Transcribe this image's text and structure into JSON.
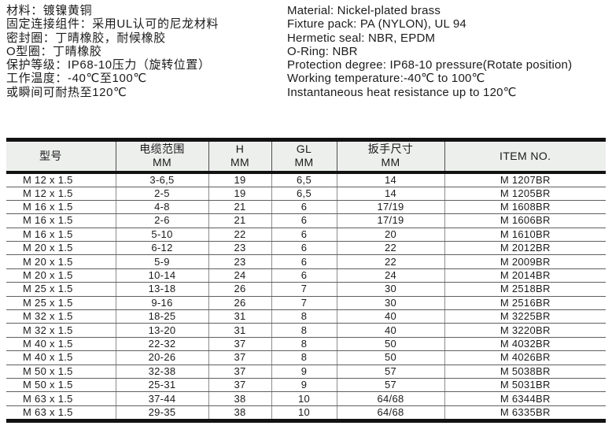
{
  "specs": {
    "zh": [
      "材料：镀镍黄铜",
      "固定连接组件：采用UL认可的尼龙材料",
      "密封圈：丁晴橡胶，耐候橡胶",
      "O型圈：丁晴橡胶",
      "保护等级：IP68-10压力（旋转位置）",
      "工作温度：-40℃至100℃",
      "或瞬间可耐热至120℃"
    ],
    "en": [
      "Material: Nickel-plated brass",
      "Fixture pack: PA (NYLON), UL 94",
      "Hermetic seal: NBR, EPDM",
      "O-Ring: NBR",
      "Protection degree: IP68-10 pressure(Rotate position)",
      "Working temperature:-40℃ to 100℃",
      "Instantaneous heat resistance up to 120℃"
    ]
  },
  "table": {
    "headers": [
      {
        "line1": "型号",
        "line2": ""
      },
      {
        "line1": "电缆范围",
        "line2": "MM"
      },
      {
        "line1": "H",
        "line2": "MM"
      },
      {
        "line1": "GL",
        "line2": "MM"
      },
      {
        "line1": "扳手尺寸",
        "line2": "MM"
      },
      {
        "line1": "ITEM NO.",
        "line2": ""
      }
    ],
    "rows": [
      [
        "M 12 x 1.5",
        "3-6,5",
        "19",
        "6,5",
        "14",
        "M 1207BR"
      ],
      [
        "M 12 x 1.5",
        "2-5",
        "19",
        "6,5",
        "14",
        "M 1205BR"
      ],
      [
        "M 16 x 1.5",
        "4-8",
        "21",
        "6",
        "17/19",
        "M 1608BR"
      ],
      [
        "M 16 x 1.5",
        "2-6",
        "21",
        "6",
        "17/19",
        "M 1606BR"
      ],
      [
        "M 16 x 1.5",
        "5-10",
        "22",
        "6",
        "20",
        "M 1610BR"
      ],
      [
        "M 20 x 1.5",
        "6-12",
        "23",
        "6",
        "22",
        "M 2012BR"
      ],
      [
        "M 20 x 1.5",
        "5-9",
        "23",
        "6",
        "22",
        "M 2009BR"
      ],
      [
        "M 20 x 1.5",
        "10-14",
        "24",
        "6",
        "24",
        "M 2014BR"
      ],
      [
        "M 25 x 1.5",
        "13-18",
        "26",
        "7",
        "30",
        "M 2518BR"
      ],
      [
        "M 25 x 1.5",
        "9-16",
        "26",
        "7",
        "30",
        "M 2516BR"
      ],
      [
        "M 32 x 1.5",
        "18-25",
        "31",
        "8",
        "40",
        "M 3225BR"
      ],
      [
        "M 32 x 1.5",
        "13-20",
        "31",
        "8",
        "40",
        "M 3220BR"
      ],
      [
        "M 40 x 1.5",
        "22-32",
        "37",
        "8",
        "50",
        "M 4032BR"
      ],
      [
        "M 40 x 1.5",
        "20-26",
        "37",
        "8",
        "50",
        "M 4026BR"
      ],
      [
        "M 50 x 1.5",
        "32-38",
        "37",
        "9",
        "57",
        "M 5038BR"
      ],
      [
        "M 50 x 1.5",
        "25-31",
        "37",
        "9",
        "57",
        "M 5031BR"
      ],
      [
        "M 63 x 1.5",
        "37-44",
        "38",
        "10",
        "64/68",
        "M 6344BR"
      ],
      [
        "M 63 x 1.5",
        "29-35",
        "38",
        "10",
        "64/68",
        "M 6335BR"
      ]
    ]
  },
  "colors": {
    "header_bg": "#edefed",
    "thick_border": "#121212",
    "thin_row_line": "#5f5f5f",
    "thin_col_line": "#8c8c8c",
    "text": "#1b1b1b"
  }
}
